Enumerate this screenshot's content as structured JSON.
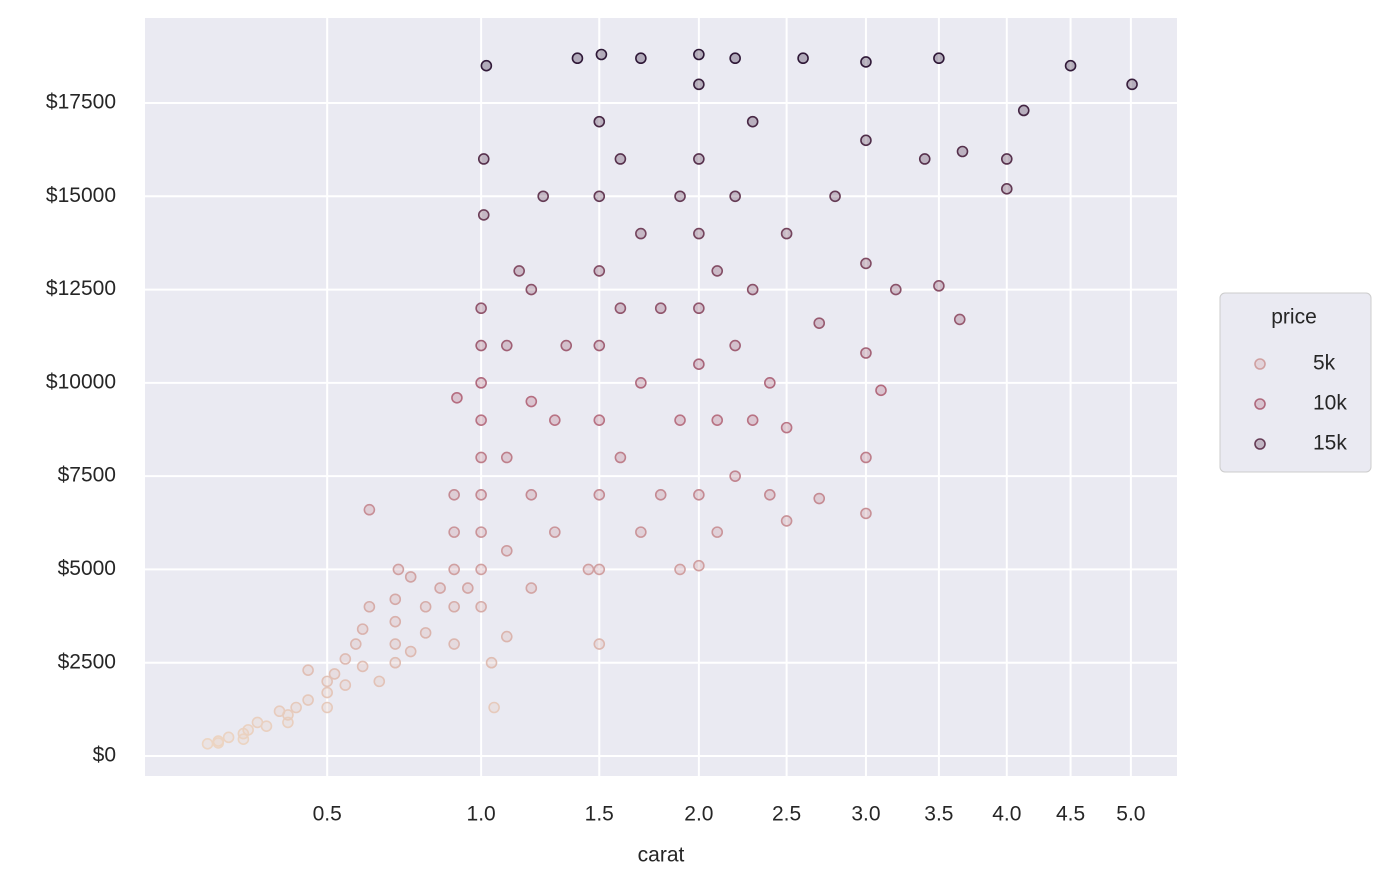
{
  "chart_data": {
    "type": "scatter",
    "x_label": "carat",
    "xscale": "sqrt",
    "xlim": [
      0.13,
      5.4
    ],
    "xticks": [
      0.5,
      {
        "value": 1,
        "label": "1.0"
      },
      1.5,
      {
        "value": 2,
        "label": "2.0"
      },
      2.5,
      {
        "value": 3,
        "label": "3.0"
      },
      3.5,
      {
        "value": 4,
        "label": "4.0"
      },
      4.5,
      {
        "value": 5,
        "label": "5.0"
      }
    ],
    "ylim": [
      -536,
      19778
    ],
    "yticks": [
      {
        "value": 0,
        "label": "$0"
      },
      {
        "value": 2500,
        "label": "$2500"
      },
      {
        "value": 5000,
        "label": "$5000"
      },
      {
        "value": 7500,
        "label": "$7500"
      },
      {
        "value": 10000,
        "label": "$10000"
      },
      {
        "value": 12500,
        "label": "$12500"
      },
      {
        "value": 15000,
        "label": "$15000"
      },
      {
        "value": 17500,
        "label": "$17500"
      }
    ],
    "grid": true,
    "palette": [
      "#ecd5c3",
      "#b56d80",
      "#2d1736"
    ],
    "hue_norm": [
      326,
      18823
    ],
    "legend": {
      "title": "price",
      "position": "right",
      "entries": [
        {
          "value": 5000,
          "label": "5k"
        },
        {
          "value": 10000,
          "label": "10k"
        },
        {
          "value": 15000,
          "label": "15k"
        }
      ]
    },
    "x": [
      0.23,
      0.25,
      0.25,
      0.27,
      0.3,
      0.3,
      0.31,
      0.33,
      0.35,
      0.38,
      0.4,
      0.4,
      0.42,
      0.45,
      0.45,
      0.5,
      0.5,
      0.5,
      0.52,
      0.55,
      0.55,
      0.58,
      0.6,
      0.6,
      0.62,
      0.62,
      0.65,
      0.7,
      0.7,
      0.7,
      0.7,
      0.71,
      0.75,
      0.75,
      0.8,
      0.8,
      0.85,
      0.9,
      0.9,
      0.9,
      0.9,
      0.9,
      0.91,
      0.95,
      1.0,
      1.0,
      1.0,
      1.0,
      1.0,
      1.0,
      1.0,
      1.0,
      1.0,
      1.01,
      1.01,
      1.02,
      1.04,
      1.05,
      1.1,
      1.1,
      1.1,
      1.1,
      1.15,
      1.2,
      1.2,
      1.2,
      1.2,
      1.25,
      1.3,
      1.3,
      1.35,
      1.4,
      1.45,
      1.5,
      1.5,
      1.5,
      1.5,
      1.5,
      1.5,
      1.5,
      1.5,
      1.51,
      1.6,
      1.6,
      1.6,
      1.7,
      1.7,
      1.7,
      1.7,
      1.8,
      1.8,
      1.9,
      1.9,
      1.9,
      2.0,
      2.0,
      2.0,
      2.0,
      2.0,
      2.0,
      2.0,
      2.0,
      2.1,
      2.1,
      2.1,
      2.2,
      2.2,
      2.2,
      2.2,
      2.3,
      2.3,
      2.3,
      2.4,
      2.4,
      2.5,
      2.5,
      2.5,
      2.6,
      2.7,
      2.7,
      2.8,
      3.0,
      3.0,
      3.0,
      3.0,
      3.0,
      3.0,
      3.1,
      3.2,
      3.4,
      3.5,
      3.5,
      3.65,
      3.67,
      4.0,
      4.0,
      4.13,
      4.5,
      5.01
    ],
    "values": [
      326,
      350,
      400,
      500,
      450,
      600,
      700,
      900,
      800,
      1200,
      900,
      1100,
      1300,
      1500,
      2300,
      1300,
      1700,
      2000,
      2200,
      1900,
      2600,
      3000,
      2400,
      3400,
      4000,
      6600,
      2000,
      2500,
      3000,
      3600,
      4200,
      5000,
      2800,
      4800,
      3300,
      4000,
      4500,
      3000,
      4000,
      5000,
      6000,
      7000,
      9600,
      4500,
      4000,
      5000,
      6000,
      7000,
      8000,
      9000,
      10000,
      11000,
      12000,
      14500,
      16000,
      18500,
      2500,
      1300,
      3200,
      5500,
      8000,
      11000,
      13000,
      4500,
      7000,
      9500,
      12500,
      15000,
      6000,
      9000,
      11000,
      18700,
      5000,
      3000,
      5000,
      7000,
      9000,
      11000,
      13000,
      15000,
      17000,
      18800,
      8000,
      12000,
      16000,
      6000,
      10000,
      14000,
      18700,
      7000,
      12000,
      5000,
      9000,
      15000,
      5100,
      7000,
      10500,
      12000,
      14000,
      16000,
      18000,
      18800,
      6000,
      9000,
      13000,
      7500,
      11000,
      15000,
      18700,
      9000,
      12500,
      17000,
      7000,
      10000,
      6300,
      8800,
      14000,
      18700,
      6900,
      11600,
      15000,
      6500,
      8000,
      10800,
      13200,
      16500,
      18600,
      9800,
      12500,
      16000,
      12600,
      18700,
      11700,
      16200,
      15200,
      16000,
      17300,
      18500,
      18000
    ]
  }
}
